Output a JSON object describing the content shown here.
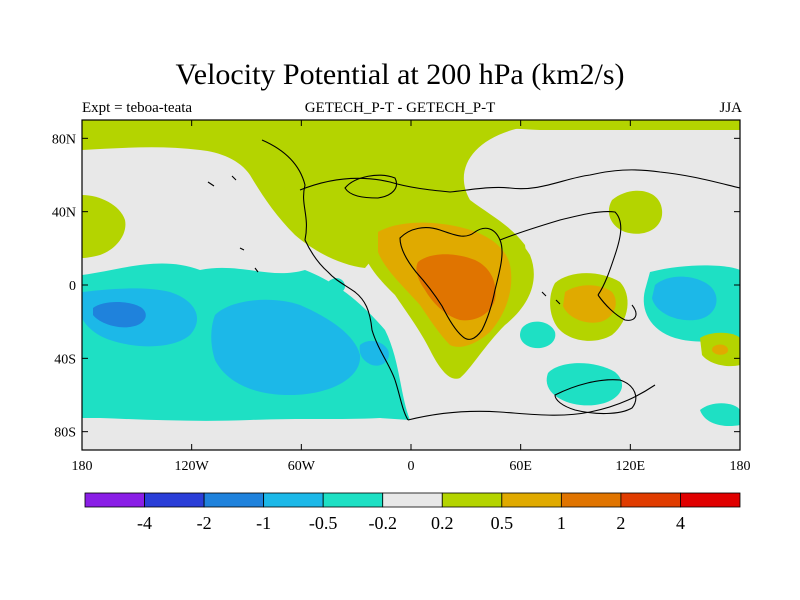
{
  "header": {
    "title": "Velocity Potential at 200 hPa (km2/s)",
    "expt": "Expt = teboa-teata",
    "case": "GETECH_P-T - GETECH_P-T",
    "season": "JJA"
  },
  "axes": {
    "x_ticks": [
      "180",
      "120W",
      "60W",
      "0",
      "60E",
      "120E",
      "180"
    ],
    "y_ticks": [
      "80N",
      "40N",
      "0",
      "40S",
      "80S"
    ]
  },
  "colorbar": {
    "labels": [
      "-4",
      "-2",
      "-1",
      "-0.5",
      "-0.2",
      "0.2",
      "0.5",
      "1",
      "2",
      "4"
    ],
    "colors": [
      "#8a1ee6",
      "#2a3ed8",
      "#1f82dc",
      "#1cb8e8",
      "#1ee0c4",
      "#e8e8e8",
      "#b4d400",
      "#e0aa00",
      "#e07400",
      "#e03c00",
      "#e00000"
    ]
  },
  "chart_data": {
    "type": "contour-map",
    "title": "Velocity Potential at 200 hPa (km2/s)",
    "projection": "cylindrical-equidistant",
    "lon_range": [
      -180,
      180
    ],
    "lat_range": [
      -90,
      90
    ],
    "levels": [
      -4,
      -2,
      -1,
      -0.5,
      -0.2,
      0.2,
      0.5,
      1,
      2,
      4
    ],
    "features": [
      {
        "name": "positive-max-central",
        "lon": 25,
        "lat": 0,
        "max_level": 2
      },
      {
        "name": "positive-secondary-east",
        "lon": 95,
        "lat": -13,
        "max_level": 1
      },
      {
        "name": "negative-min-west-pacific",
        "lon": -165,
        "lat": -15,
        "min_level": -1
      },
      {
        "name": "negative-pacific-south",
        "lon": -100,
        "lat": -40,
        "min_level": -0.5
      }
    ]
  }
}
